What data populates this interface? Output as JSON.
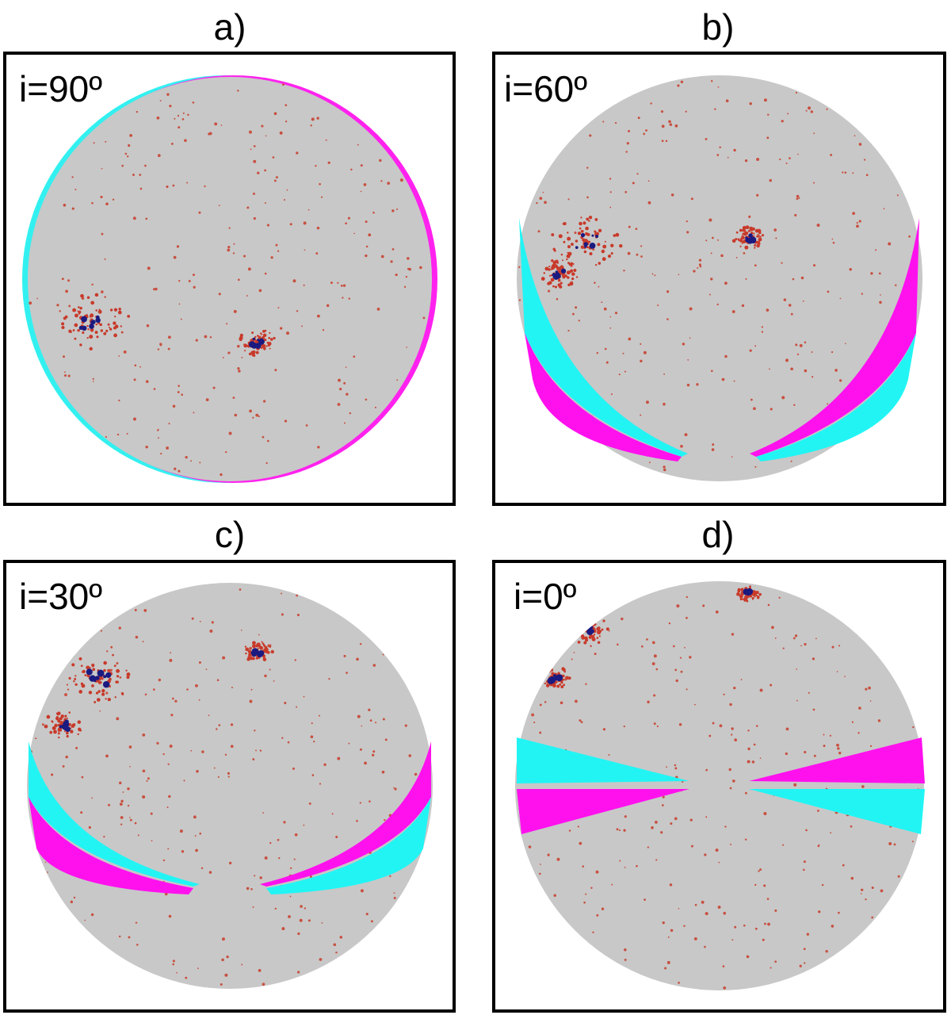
{
  "panels": [
    {
      "label": "a)",
      "annotation": "i=90º"
    },
    {
      "label": "b)",
      "annotation": "i=60º"
    },
    {
      "label": "c)",
      "annotation": "i=30º"
    },
    {
      "label": "d)",
      "annotation": "i=0º"
    }
  ]
}
